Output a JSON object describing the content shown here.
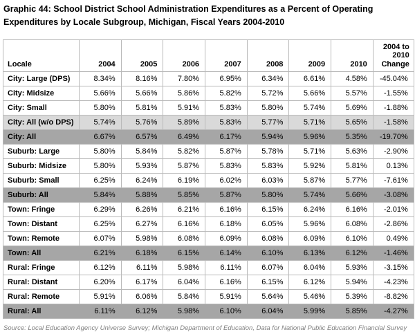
{
  "page": {
    "title": "Graphic 44: School District School Administration Expenditures as a Percent of Operating Expenditures by Locale Subgroup, Michigan, Fiscal Years 2004-2010",
    "source": "Source: Local Education Agency Universe Survey; Michigan Department of Education, Data for National Public Education Financial Survey"
  },
  "colors": {
    "row_shade_light": "#d9d9d9",
    "row_shade_dark": "#a6a6a6",
    "grid_line": "#b9b9b9",
    "source_text": "#7f7f7f",
    "title_text": "#000000"
  },
  "chart_data": {
    "type": "table",
    "title": "Graphic 44: School District School Administration Expenditures as a Percent of Operating Expenditures by Locale Subgroup, Michigan, Fiscal Years 2004-2010",
    "columns": [
      "Locale",
      "2004",
      "2005",
      "2006",
      "2007",
      "2008",
      "2009",
      "2010",
      "2004 to 2010 Change"
    ],
    "unit": "percent of operating expenditures",
    "rows": [
      {
        "label": "City: Large (DPS)",
        "values": [
          "8.34%",
          "8.16%",
          "7.80%",
          "6.95%",
          "6.34%",
          "6.61%",
          "4.58%"
        ],
        "change": "-45.04%",
        "shade": "none"
      },
      {
        "label": "City: Midsize",
        "values": [
          "5.66%",
          "5.66%",
          "5.86%",
          "5.82%",
          "5.72%",
          "5.66%",
          "5.57%"
        ],
        "change": "-1.55%",
        "shade": "none"
      },
      {
        "label": "City: Small",
        "values": [
          "5.80%",
          "5.81%",
          "5.91%",
          "5.83%",
          "5.80%",
          "5.74%",
          "5.69%"
        ],
        "change": "-1.88%",
        "shade": "none"
      },
      {
        "label": "City: All (w/o DPS)",
        "values": [
          "5.74%",
          "5.76%",
          "5.89%",
          "5.83%",
          "5.77%",
          "5.71%",
          "5.65%"
        ],
        "change": "-1.58%",
        "shade": "light"
      },
      {
        "label": "City: All",
        "values": [
          "6.67%",
          "6.57%",
          "6.49%",
          "6.17%",
          "5.94%",
          "5.96%",
          "5.35%"
        ],
        "change": "-19.70%",
        "shade": "dark"
      },
      {
        "label": "Suburb: Large",
        "values": [
          "5.80%",
          "5.84%",
          "5.82%",
          "5.87%",
          "5.78%",
          "5.71%",
          "5.63%"
        ],
        "change": "-2.90%",
        "shade": "none"
      },
      {
        "label": "Suburb: Midsize",
        "values": [
          "5.80%",
          "5.93%",
          "5.87%",
          "5.83%",
          "5.83%",
          "5.92%",
          "5.81%"
        ],
        "change": "0.13%",
        "shade": "none"
      },
      {
        "label": "Suburb: Small",
        "values": [
          "6.25%",
          "6.24%",
          "6.19%",
          "6.02%",
          "6.03%",
          "5.87%",
          "5.77%"
        ],
        "change": "-7.61%",
        "shade": "none"
      },
      {
        "label": "Suburb: All",
        "values": [
          "5.84%",
          "5.88%",
          "5.85%",
          "5.87%",
          "5.80%",
          "5.74%",
          "5.66%"
        ],
        "change": "-3.08%",
        "shade": "dark"
      },
      {
        "label": "Town: Fringe",
        "values": [
          "6.29%",
          "6.26%",
          "6.21%",
          "6.16%",
          "6.15%",
          "6.24%",
          "6.16%"
        ],
        "change": "-2.01%",
        "shade": "none"
      },
      {
        "label": "Town: Distant",
        "values": [
          "6.25%",
          "6.27%",
          "6.16%",
          "6.18%",
          "6.05%",
          "5.96%",
          "6.08%"
        ],
        "change": "-2.86%",
        "shade": "none"
      },
      {
        "label": "Town: Remote",
        "values": [
          "6.07%",
          "5.98%",
          "6.08%",
          "6.09%",
          "6.08%",
          "6.09%",
          "6.10%"
        ],
        "change": "0.49%",
        "shade": "none"
      },
      {
        "label": "Town: All",
        "values": [
          "6.21%",
          "6.18%",
          "6.15%",
          "6.14%",
          "6.10%",
          "6.13%",
          "6.12%"
        ],
        "change": "-1.46%",
        "shade": "dark"
      },
      {
        "label": "Rural: Fringe",
        "values": [
          "6.12%",
          "6.11%",
          "5.98%",
          "6.11%",
          "6.07%",
          "6.04%",
          "5.93%"
        ],
        "change": "-3.15%",
        "shade": "none"
      },
      {
        "label": "Rural: Distant",
        "values": [
          "6.20%",
          "6.17%",
          "6.04%",
          "6.16%",
          "6.15%",
          "6.12%",
          "5.94%"
        ],
        "change": "-4.23%",
        "shade": "none"
      },
      {
        "label": "Rural: Remote",
        "values": [
          "5.91%",
          "6.06%",
          "5.84%",
          "5.91%",
          "5.64%",
          "5.46%",
          "5.39%"
        ],
        "change": "-8.82%",
        "shade": "none"
      },
      {
        "label": "Rural: All",
        "values": [
          "6.11%",
          "6.12%",
          "5.98%",
          "6.10%",
          "6.04%",
          "5.99%",
          "5.85%"
        ],
        "change": "-4.27%",
        "shade": "dark"
      }
    ],
    "source": "Source: Local Education Agency Universe Survey; Michigan Department of Education, Data for National Public Education Financial Survey",
    "layout": {
      "grid": "on",
      "shaded_subtotal_rows": [
        "City: All",
        "Suburb: All",
        "Town: All",
        "Rural: All"
      ],
      "shaded_light_rows": [
        "City: All (w/o DPS)"
      ]
    }
  }
}
